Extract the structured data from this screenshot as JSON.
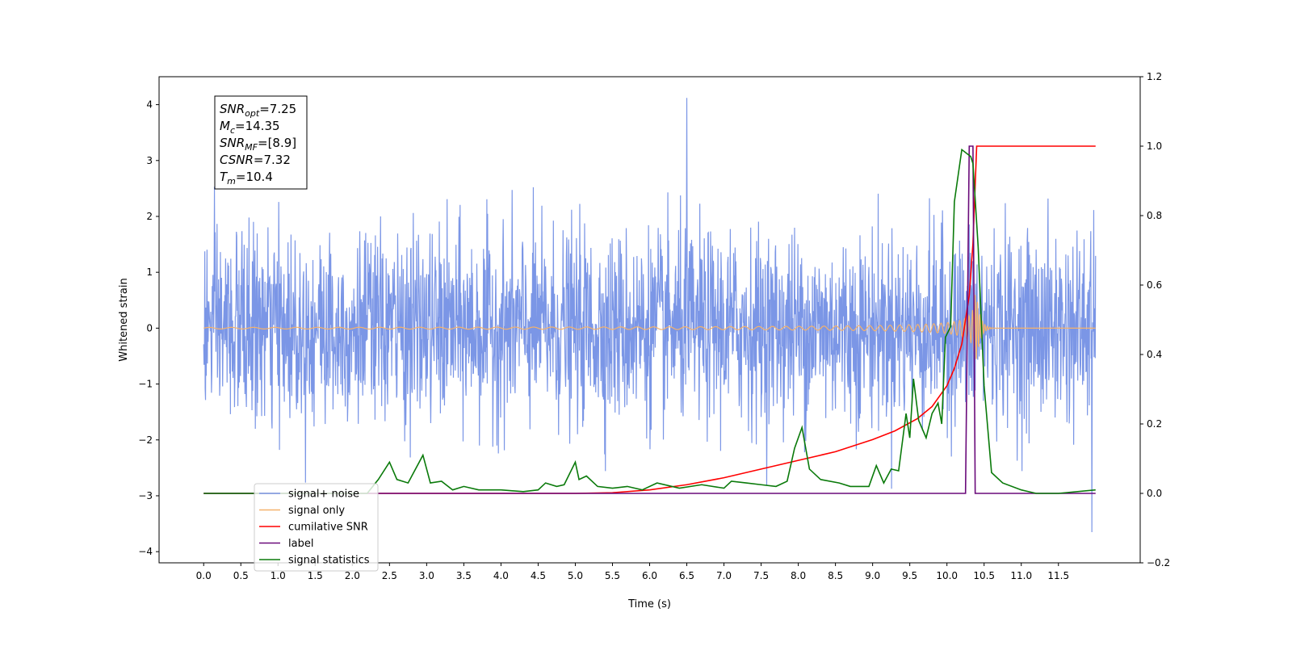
{
  "chart_data": {
    "type": "line",
    "title": "",
    "xlabel": "Time (s)",
    "ylabel_left": "Whitened strain",
    "ylabel_right": "",
    "xlim": [
      -0.6,
      12.6
    ],
    "ylim_left": [
      -4.2,
      4.5
    ],
    "ylim_right": [
      -0.2,
      1.2
    ],
    "x_ticks": [
      "0.0",
      "0.5",
      "1.0",
      "1.5",
      "2.0",
      "2.5",
      "3.0",
      "3.5",
      "4.0",
      "4.5",
      "5.0",
      "5.5",
      "6.0",
      "6.5",
      "7.0",
      "7.5",
      "8.0",
      "8.5",
      "9.0",
      "9.5",
      "10.0",
      "10.5",
      "11.0",
      "11.5"
    ],
    "y_ticks_left": [
      "4",
      "3",
      "2",
      "1",
      "0",
      "−1",
      "−2",
      "−3",
      "−4"
    ],
    "y_ticks_right": [
      "1.2",
      "1.0",
      "0.8",
      "0.6",
      "0.4",
      "0.2",
      "0.0",
      "−0.2"
    ],
    "grid": false,
    "legend_position": "lower-left",
    "annotation": {
      "lines": [
        {
          "base": "SNR",
          "sub": "opt",
          "value": "=7.25"
        },
        {
          "base": "M",
          "sub": "c",
          "value": "=14.35"
        },
        {
          "base": "SNR",
          "sub": "MF",
          "value": "=[8.9]"
        },
        {
          "base": "CSNR",
          "sub": "",
          "value": "=7.32"
        },
        {
          "base": "T",
          "sub": "m",
          "value": "=10.4"
        }
      ]
    },
    "series": [
      {
        "name": "signal+ noise",
        "color": "#7b96e6",
        "axis": "left",
        "kind": "noise",
        "x_range": [
          0,
          12
        ],
        "amplitude_std": 0.85,
        "envelope_max": 4.12,
        "envelope_min": -3.65
      },
      {
        "name": "signal only",
        "color": "#f5b26b",
        "axis": "left",
        "kind": "chirp",
        "x_range": [
          0,
          12
        ],
        "merger_time": 10.4,
        "peak_amplitude": 0.6
      },
      {
        "name": "cumilative SNR",
        "color": "#ff0000",
        "axis": "right",
        "x": [
          0,
          5.0,
          5.5,
          6.0,
          6.5,
          7.0,
          7.5,
          8.0,
          8.5,
          9.0,
          9.3,
          9.6,
          9.8,
          10.0,
          10.1,
          10.2,
          10.3,
          10.35,
          10.4,
          12.0
        ],
        "y": [
          0,
          0,
          0.002,
          0.01,
          0.025,
          0.045,
          0.07,
          0.095,
          0.12,
          0.155,
          0.18,
          0.215,
          0.25,
          0.31,
          0.36,
          0.43,
          0.57,
          0.72,
          1.0,
          1.0
        ]
      },
      {
        "name": "label",
        "color": "#6a0a7a",
        "axis": "right",
        "x": [
          0,
          10.25,
          10.3,
          10.35,
          10.38,
          10.42,
          12.0
        ],
        "y": [
          0,
          0,
          1.0,
          1.0,
          0,
          0,
          0
        ]
      },
      {
        "name": "signal statistics",
        "color": "#0a7a0a",
        "axis": "right",
        "x": [
          0,
          2.0,
          2.2,
          2.35,
          2.5,
          2.6,
          2.75,
          2.8,
          2.95,
          3.05,
          3.2,
          3.35,
          3.5,
          3.7,
          4.0,
          4.3,
          4.5,
          4.6,
          4.75,
          4.85,
          5.0,
          5.05,
          5.15,
          5.3,
          5.5,
          5.7,
          5.9,
          6.1,
          6.4,
          6.7,
          7.0,
          7.1,
          7.3,
          7.5,
          7.7,
          7.85,
          7.95,
          8.05,
          8.15,
          8.3,
          8.55,
          8.7,
          8.95,
          9.05,
          9.15,
          9.25,
          9.35,
          9.45,
          9.5,
          9.55,
          9.62,
          9.72,
          9.8,
          9.88,
          9.93,
          9.98,
          10.05,
          10.1,
          10.2,
          10.32,
          10.35,
          10.42,
          10.5,
          10.6,
          10.75,
          11.0,
          11.2,
          11.5,
          12.0
        ],
        "y": [
          0,
          0,
          0.0,
          0.04,
          0.09,
          0.04,
          0.03,
          0.05,
          0.11,
          0.03,
          0.035,
          0.01,
          0.02,
          0.01,
          0.01,
          0.005,
          0.01,
          0.03,
          0.02,
          0.025,
          0.09,
          0.04,
          0.05,
          0.02,
          0.015,
          0.02,
          0.01,
          0.03,
          0.015,
          0.025,
          0.015,
          0.035,
          0.03,
          0.025,
          0.02,
          0.035,
          0.13,
          0.19,
          0.07,
          0.04,
          0.03,
          0.02,
          0.02,
          0.08,
          0.03,
          0.07,
          0.065,
          0.23,
          0.16,
          0.33,
          0.21,
          0.16,
          0.23,
          0.26,
          0.2,
          0.45,
          0.48,
          0.84,
          0.99,
          0.97,
          0.95,
          0.71,
          0.31,
          0.06,
          0.03,
          0.01,
          0.0,
          0.0,
          0.01
        ]
      }
    ]
  }
}
